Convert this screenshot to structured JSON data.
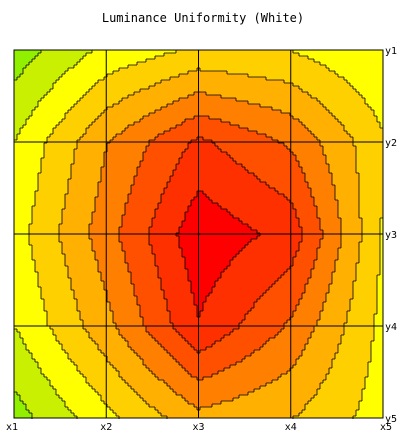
{
  "chart_data": {
    "type": "heatmap",
    "title": "Luminance Uniformity (White)",
    "x_ticks": [
      "x1",
      "x2",
      "x3",
      "x4",
      "x5"
    ],
    "y_ticks": [
      "y1",
      "y2",
      "y3",
      "y4",
      "y5"
    ],
    "grid": true,
    "colors": {
      "levels": [
        "#90f000",
        "#c8f000",
        "#ffff00",
        "#ffd000",
        "#ffb000",
        "#ff8000",
        "#ff5000",
        "#ff3000",
        "#ff0000"
      ],
      "grid": "#000000",
      "contour": "#000000"
    },
    "values": [
      [
        0.05,
        0.25,
        0.35,
        0.33,
        0.22
      ],
      [
        0.22,
        0.55,
        0.8,
        0.65,
        0.35
      ],
      [
        0.28,
        0.62,
        0.97,
        0.85,
        0.32
      ],
      [
        0.22,
        0.52,
        0.88,
        0.65,
        0.3
      ],
      [
        0.06,
        0.3,
        0.52,
        0.45,
        0.28
      ]
    ]
  }
}
